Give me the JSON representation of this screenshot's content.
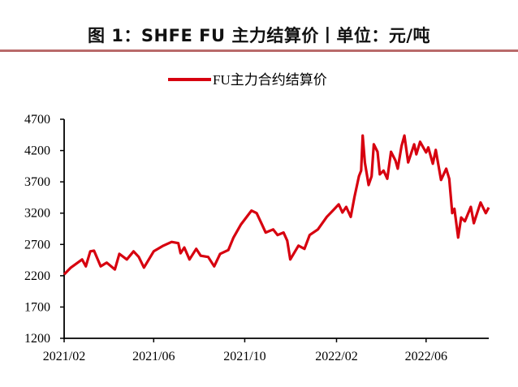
{
  "header": {
    "title": "图 1：SHFE FU 主力结算价丨单位：元/吨"
  },
  "colors": {
    "series": "#d7000f",
    "rule": "#b96a6a",
    "axis": "#000000"
  },
  "chart_data": {
    "type": "line",
    "title": "",
    "xlabel": "",
    "ylabel": "",
    "ylim": [
      1200,
      4700
    ],
    "yticks": [
      "1200",
      "1700",
      "2200",
      "2700",
      "3200",
      "3700",
      "4200",
      "4700"
    ],
    "xlim": [
      "2021-02-01",
      "2022-08-24"
    ],
    "xticks": [
      {
        "date": "2021-02-01",
        "label": "2021/02"
      },
      {
        "date": "2021-06-01",
        "label": "2021/06"
      },
      {
        "date": "2021-10-01",
        "label": "2021/10"
      },
      {
        "date": "2022-02-01",
        "label": "2022/02"
      },
      {
        "date": "2022-06-01",
        "label": "2022/06"
      }
    ],
    "grid": false,
    "legend": "top-center",
    "series": [
      {
        "name": "FU主力合约结算价",
        "x": [
          "2021-02-01",
          "2021-02-10",
          "2021-02-17",
          "2021-02-25",
          "2021-03-02",
          "2021-03-08",
          "2021-03-13",
          "2021-03-22",
          "2021-03-30",
          "2021-04-10",
          "2021-04-16",
          "2021-04-26",
          "2021-05-05",
          "2021-05-12",
          "2021-05-19",
          "2021-06-01",
          "2021-06-14",
          "2021-06-25",
          "2021-07-04",
          "2021-07-07",
          "2021-07-12",
          "2021-07-19",
          "2021-07-28",
          "2021-08-03",
          "2021-08-13",
          "2021-08-21",
          "2021-08-29",
          "2021-09-09",
          "2021-09-16",
          "2021-09-26",
          "2021-10-10",
          "2021-10-17",
          "2021-10-24",
          "2021-10-29",
          "2021-11-08",
          "2021-11-14",
          "2021-11-22",
          "2021-11-27",
          "2021-12-01",
          "2021-12-12",
          "2021-12-20",
          "2021-12-27",
          "2022-01-07",
          "2022-01-19",
          "2022-01-27",
          "2022-02-04",
          "2022-02-09",
          "2022-02-14",
          "2022-02-20",
          "2022-02-25",
          "2022-03-03",
          "2022-03-06",
          "2022-03-08",
          "2022-03-11",
          "2022-03-16",
          "2022-03-20",
          "2022-03-23",
          "2022-03-28",
          "2022-03-31",
          "2022-04-05",
          "2022-04-10",
          "2022-04-15",
          "2022-04-21",
          "2022-04-24",
          "2022-04-29",
          "2022-05-03",
          "2022-05-08",
          "2022-05-16",
          "2022-05-19",
          "2022-05-24",
          "2022-06-01",
          "2022-06-04",
          "2022-06-10",
          "2022-06-14",
          "2022-06-21",
          "2022-06-28",
          "2022-07-02",
          "2022-07-06",
          "2022-07-09",
          "2022-07-14",
          "2022-07-18",
          "2022-07-23",
          "2022-07-31",
          "2022-08-04",
          "2022-08-13",
          "2022-08-20",
          "2022-08-24"
        ],
        "values": [
          2220,
          2330,
          2390,
          2460,
          2350,
          2590,
          2600,
          2350,
          2410,
          2300,
          2550,
          2460,
          2590,
          2500,
          2330,
          2590,
          2680,
          2740,
          2720,
          2560,
          2650,
          2460,
          2630,
          2520,
          2500,
          2350,
          2550,
          2610,
          2810,
          3020,
          3240,
          3200,
          3020,
          2890,
          2940,
          2850,
          2890,
          2760,
          2460,
          2680,
          2630,
          2850,
          2940,
          3140,
          3240,
          3340,
          3210,
          3300,
          3140,
          3460,
          3790,
          3880,
          4440,
          4010,
          3650,
          3790,
          4300,
          4180,
          3820,
          3880,
          3750,
          4180,
          4040,
          3910,
          4270,
          4440,
          4010,
          4300,
          4140,
          4340,
          4170,
          4250,
          3990,
          4210,
          3730,
          3910,
          3750,
          3200,
          3270,
          2810,
          3130,
          3070,
          3300,
          3040,
          3370,
          3200,
          3290
        ]
      }
    ]
  }
}
